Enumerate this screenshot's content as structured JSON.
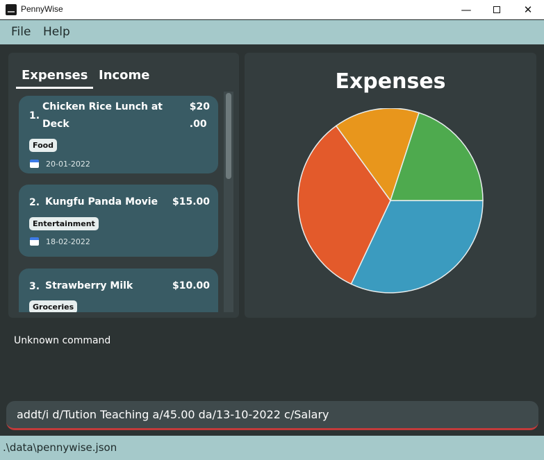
{
  "window": {
    "title": "PennyWise",
    "minimize_icon": "minimize-icon",
    "maximize_icon": "maximize-icon",
    "close_icon": "close-icon"
  },
  "menu": {
    "items": [
      "File",
      "Help"
    ]
  },
  "tabs": {
    "expenses": "Expenses",
    "income": "Income",
    "active": "Expenses"
  },
  "entries": [
    {
      "index": "1.",
      "title_line1": "Chicken Rice Lunch at",
      "title_line2": "Deck",
      "amount_line1": "$20",
      "amount_line2": ".00",
      "tag": "Food",
      "date": "20-01-2022"
    },
    {
      "index": "2.",
      "title": "Kungfu Panda Movie",
      "amount": "$15.00",
      "tag": "Entertainment",
      "date": "18-02-2022"
    },
    {
      "index": "3.",
      "title": "Strawberry Milk",
      "amount": "$10.00",
      "tag": "Groceries"
    }
  ],
  "chart": {
    "title": "Expenses"
  },
  "chart_data": {
    "type": "pie",
    "title": "Expenses",
    "slices": [
      {
        "value": 32,
        "color": "#3b9bbf"
      },
      {
        "value": 33,
        "color": "#e35a2b"
      },
      {
        "value": 15,
        "color": "#e8961c"
      },
      {
        "value": 20,
        "color": "#4eaa4e"
      }
    ],
    "start_angle_deg": 0,
    "direction": "clockwise",
    "legend": false
  },
  "result": {
    "text": "Unknown command"
  },
  "command": {
    "value": "addt/i d/Tution Teaching a/45.00 da/13-10-2022 c/Salary"
  },
  "status": {
    "path": ".\\data\\pennywise.json"
  },
  "colors": {
    "menubar": "#a5c9ca",
    "card": "#395b64",
    "background": "#2c3333",
    "panel": "#343d3e",
    "command_underline": "#c23a3a"
  }
}
